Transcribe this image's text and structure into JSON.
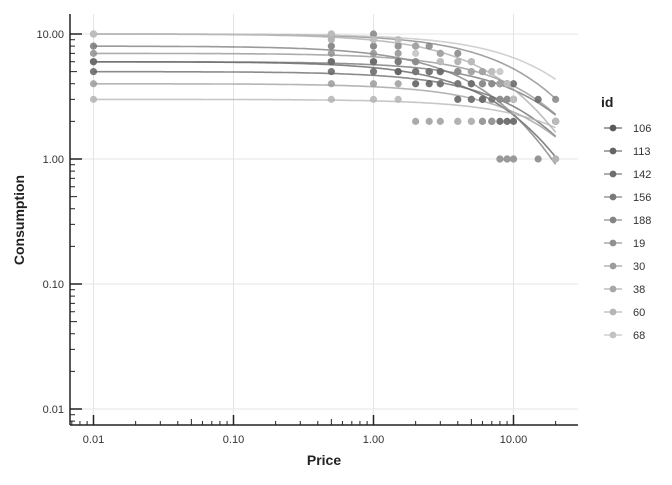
{
  "chart_data": {
    "type": "scatter",
    "xlabel": "Price",
    "ylabel": "Consumption",
    "x_scale": "log",
    "y_scale": "log",
    "xlim": [
      0.0068,
      23
    ],
    "ylim": [
      0.0075,
      14
    ],
    "x_ticks": [
      {
        "v": 0.01,
        "label": "0.01"
      },
      {
        "v": 0.1,
        "label": "0.10"
      },
      {
        "v": 1,
        "label": "1.00"
      },
      {
        "v": 10,
        "label": "10.00"
      }
    ],
    "y_ticks": [
      {
        "v": 0.01,
        "label": "0.01"
      },
      {
        "v": 0.1,
        "label": "0.10"
      },
      {
        "v": 1,
        "label": "1.00"
      },
      {
        "v": 10,
        "label": "10.00"
      }
    ],
    "grid": true,
    "legend": {
      "title": "id",
      "placement": "right"
    },
    "series": [
      {
        "name": "106",
        "color": "#5a5a5a",
        "fit": {
          "q0": 6,
          "alpha": 0.004
        },
        "points": [
          [
            0.01,
            6
          ],
          [
            0.5,
            6
          ],
          [
            1,
            6
          ],
          [
            1.5,
            5
          ],
          [
            2,
            4
          ],
          [
            2.5,
            4
          ],
          [
            3,
            4
          ],
          [
            4,
            3
          ],
          [
            5,
            3
          ],
          [
            6,
            3
          ],
          [
            7,
            2
          ],
          [
            8,
            2
          ],
          [
            9,
            2
          ],
          [
            10,
            2
          ]
        ]
      },
      {
        "name": "113",
        "color": "#646464",
        "fit": {
          "q0": 5,
          "alpha": 0.003
        },
        "points": [
          [
            0.01,
            5
          ],
          [
            0.5,
            5
          ],
          [
            1,
            5
          ],
          [
            1.5,
            5
          ],
          [
            2,
            5
          ],
          [
            2.5,
            5
          ],
          [
            3,
            5
          ],
          [
            4,
            5
          ],
          [
            5,
            4
          ],
          [
            6,
            4
          ],
          [
            7,
            4
          ],
          [
            8,
            4
          ],
          [
            9,
            4
          ],
          [
            10,
            4
          ],
          [
            15,
            3
          ],
          [
            20,
            2
          ]
        ]
      },
      {
        "name": "142",
        "color": "#6e6e6e",
        "fit": {
          "q0": 6,
          "alpha": 0.002
        },
        "points": [
          [
            0.01,
            6
          ],
          [
            0.5,
            6
          ],
          [
            1,
            6
          ],
          [
            1.5,
            6
          ],
          [
            2,
            6
          ],
          [
            2.5,
            5
          ],
          [
            3,
            5
          ],
          [
            4,
            4
          ],
          [
            5,
            4
          ],
          [
            6,
            3
          ],
          [
            7,
            3
          ],
          [
            8,
            3
          ],
          [
            9,
            3
          ],
          [
            10,
            3
          ],
          [
            20,
            2
          ]
        ]
      },
      {
        "name": "156",
        "color": "#787878",
        "fit": {
          "q0": 8,
          "alpha": 0.004
        },
        "points": [
          [
            0.01,
            8
          ],
          [
            0.5,
            8
          ],
          [
            1,
            8
          ],
          [
            1.5,
            6
          ],
          [
            2,
            5
          ],
          [
            2.5,
            5
          ],
          [
            3,
            4
          ],
          [
            4,
            4
          ],
          [
            5,
            3
          ],
          [
            6,
            2
          ],
          [
            7,
            2
          ],
          [
            8,
            1
          ],
          [
            9,
            1
          ],
          [
            10,
            1
          ]
        ]
      },
      {
        "name": "188",
        "color": "#848484",
        "fit": {
          "q0": 10,
          "alpha": 0.0015
        },
        "points": [
          [
            0.01,
            10
          ],
          [
            0.5,
            10
          ],
          [
            1,
            10
          ],
          [
            1.5,
            8
          ],
          [
            2,
            8
          ],
          [
            2.5,
            8
          ],
          [
            3,
            7
          ],
          [
            4,
            7
          ],
          [
            5,
            6
          ],
          [
            6,
            5
          ],
          [
            7,
            5
          ],
          [
            8,
            4
          ],
          [
            9,
            4
          ],
          [
            10,
            3
          ],
          [
            15,
            1
          ],
          [
            20,
            3
          ]
        ]
      },
      {
        "name": "19",
        "color": "#909090",
        "fit": {
          "q0": 7,
          "alpha": 0.002
        },
        "points": [
          [
            0.01,
            7
          ],
          [
            0.5,
            7
          ],
          [
            1,
            7
          ],
          [
            1.5,
            7
          ],
          [
            2,
            6
          ],
          [
            3,
            6
          ],
          [
            4,
            5
          ],
          [
            5,
            5
          ],
          [
            6,
            4
          ],
          [
            7,
            4
          ],
          [
            8,
            3
          ],
          [
            9,
            3
          ],
          [
            10,
            3
          ],
          [
            20,
            2
          ]
        ]
      },
      {
        "name": "30",
        "color": "#9c9c9c",
        "fit": {
          "q0": 4,
          "alpha": 0.003
        },
        "points": [
          [
            0.01,
            4
          ],
          [
            0.5,
            4
          ],
          [
            1,
            4
          ],
          [
            1.5,
            4
          ],
          [
            2,
            2
          ],
          [
            2.5,
            2
          ],
          [
            3,
            2
          ],
          [
            4,
            2
          ],
          [
            5,
            2
          ],
          [
            6,
            2
          ],
          [
            7,
            2
          ],
          [
            8,
            1
          ],
          [
            9,
            1
          ],
          [
            10,
            1
          ]
        ]
      },
      {
        "name": "38",
        "color": "#a8a8a8",
        "fit": {
          "q0": 10,
          "alpha": 0.0025
        },
        "points": [
          [
            0.01,
            10
          ],
          [
            0.5,
            9
          ],
          [
            1,
            9
          ],
          [
            1.5,
            9
          ],
          [
            2,
            8
          ],
          [
            3,
            7
          ],
          [
            4,
            6
          ],
          [
            5,
            5
          ],
          [
            6,
            5
          ],
          [
            7,
            5
          ],
          [
            8,
            4
          ],
          [
            9,
            4
          ],
          [
            10,
            3
          ],
          [
            20,
            1
          ]
        ]
      },
      {
        "name": "60",
        "color": "#b4b4b4",
        "fit": {
          "q0": 3,
          "alpha": 0.002
        },
        "points": [
          [
            0.01,
            3
          ],
          [
            0.5,
            3
          ],
          [
            1,
            3
          ],
          [
            1.5,
            3
          ],
          [
            4,
            2
          ],
          [
            5,
            2
          ],
          [
            20,
            1
          ]
        ]
      },
      {
        "name": "68",
        "color": "#c2c2c2",
        "fit": {
          "q0": 10,
          "alpha": 0.001
        },
        "points": [
          [
            0.01,
            10
          ],
          [
            0.5,
            10
          ],
          [
            1,
            9
          ],
          [
            1.5,
            9
          ],
          [
            2,
            7
          ],
          [
            3,
            6
          ],
          [
            5,
            6
          ],
          [
            7,
            5
          ],
          [
            8,
            5
          ],
          [
            9,
            4
          ],
          [
            10,
            3
          ],
          [
            20,
            2
          ]
        ]
      }
    ]
  }
}
